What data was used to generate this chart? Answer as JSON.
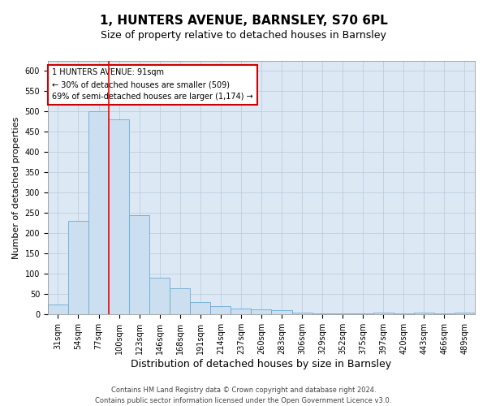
{
  "title": "1, HUNTERS AVENUE, BARNSLEY, S70 6PL",
  "subtitle": "Size of property relative to detached houses in Barnsley",
  "xlabel": "Distribution of detached houses by size in Barnsley",
  "ylabel": "Number of detached properties",
  "categories": [
    "31sqm",
    "54sqm",
    "77sqm",
    "100sqm",
    "123sqm",
    "146sqm",
    "168sqm",
    "191sqm",
    "214sqm",
    "237sqm",
    "260sqm",
    "283sqm",
    "306sqm",
    "329sqm",
    "352sqm",
    "375sqm",
    "397sqm",
    "420sqm",
    "443sqm",
    "466sqm",
    "489sqm"
  ],
  "values": [
    25,
    230,
    500,
    480,
    245,
    90,
    65,
    30,
    20,
    15,
    12,
    10,
    5,
    3,
    2,
    2,
    5,
    2,
    5,
    2,
    5
  ],
  "bar_color": "#ccdff0",
  "bar_edge_color": "#6aaad4",
  "redline_index": 3,
  "annotation_text": "1 HUNTERS AVENUE: 91sqm\n← 30% of detached houses are smaller (509)\n69% of semi-detached houses are larger (1,174) →",
  "annotation_box_facecolor": "#ffffff",
  "annotation_box_edgecolor": "#cc0000",
  "ylim": [
    0,
    625
  ],
  "yticks": [
    0,
    50,
    100,
    150,
    200,
    250,
    300,
    350,
    400,
    450,
    500,
    550,
    600
  ],
  "background_color": "#ffffff",
  "plot_bg_color": "#dce9f5",
  "grid_color": "#b8c9db",
  "footer_line1": "Contains HM Land Registry data © Crown copyright and database right 2024.",
  "footer_line2": "Contains public sector information licensed under the Open Government Licence v3.0.",
  "title_fontsize": 11,
  "subtitle_fontsize": 9,
  "xlabel_fontsize": 9,
  "ylabel_fontsize": 8,
  "tick_fontsize": 7,
  "annotation_fontsize": 7,
  "footer_fontsize": 6
}
